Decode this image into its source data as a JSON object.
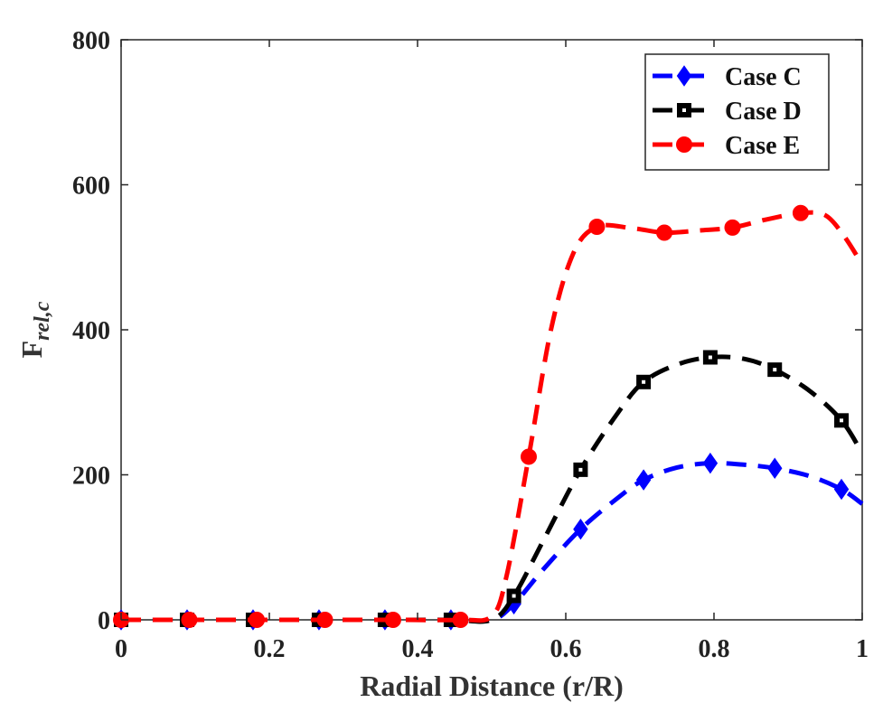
{
  "chart_data": {
    "type": "line",
    "title": "",
    "xlabel": "Radial Distance (r/R)",
    "ylabel_main": "F",
    "ylabel_sub": "rel,c",
    "xlim": [
      0,
      1
    ],
    "ylim": [
      0,
      800
    ],
    "xticks": [
      0,
      0.2,
      0.4,
      0.6,
      0.8,
      1
    ],
    "xtick_labels": [
      "0",
      "0.2",
      "0.4",
      "0.6",
      "0.8",
      "1"
    ],
    "yticks": [
      0,
      200,
      400,
      600,
      800
    ],
    "ytick_labels": [
      "0",
      "200",
      "400",
      "600",
      "800"
    ],
    "grid": false,
    "legend_position": "top-right",
    "series": [
      {
        "name": "Case C",
        "color": "#0000ff",
        "marker": "diamond",
        "x": [
          0,
          0.089,
          0.178,
          0.267,
          0.356,
          0.445,
          0.5,
          0.53,
          0.57,
          0.62,
          0.67,
          0.705,
          0.75,
          0.795,
          0.84,
          0.882,
          0.93,
          0.972,
          1.0
        ],
        "y": [
          0,
          0,
          0,
          0,
          0,
          0,
          0,
          22,
          70,
          125,
          168,
          193,
          210,
          216,
          214,
          209,
          198,
          180,
          160
        ],
        "marker_x": [
          0,
          0.089,
          0.178,
          0.267,
          0.356,
          0.445,
          0.53,
          0.62,
          0.705,
          0.795,
          0.882,
          0.972
        ],
        "marker_y": [
          0,
          0,
          0,
          0,
          0,
          0,
          22,
          125,
          193,
          216,
          209,
          180
        ]
      },
      {
        "name": "Case D",
        "color": "#000000",
        "marker": "square",
        "x": [
          0,
          0.089,
          0.178,
          0.267,
          0.356,
          0.445,
          0.5,
          0.53,
          0.57,
          0.62,
          0.67,
          0.705,
          0.75,
          0.795,
          0.84,
          0.882,
          0.93,
          0.972,
          1.0
        ],
        "y": [
          0,
          0,
          0,
          0,
          0,
          0,
          0,
          33,
          110,
          207,
          285,
          328,
          352,
          362,
          360,
          345,
          315,
          275,
          230
        ],
        "marker_x": [
          0,
          0.089,
          0.178,
          0.267,
          0.356,
          0.445,
          0.53,
          0.62,
          0.705,
          0.795,
          0.882,
          0.972
        ],
        "marker_y": [
          0,
          0,
          0,
          0,
          0,
          0,
          33,
          207,
          328,
          362,
          345,
          275
        ]
      },
      {
        "name": "Case E",
        "color": "#ff0000",
        "marker": "circle",
        "x": [
          0,
          0.092,
          0.183,
          0.275,
          0.367,
          0.458,
          0.5,
          0.52,
          0.55,
          0.58,
          0.61,
          0.642,
          0.69,
          0.733,
          0.78,
          0.825,
          0.87,
          0.917,
          0.95,
          0.975,
          1.0
        ],
        "y": [
          0,
          0,
          0,
          0,
          0,
          0,
          5,
          60,
          225,
          400,
          505,
          542,
          540,
          534,
          537,
          541,
          552,
          561,
          558,
          530,
          490
        ],
        "marker_x": [
          0,
          0.092,
          0.183,
          0.275,
          0.367,
          0.458,
          0.55,
          0.642,
          0.733,
          0.825,
          0.917
        ],
        "marker_y": [
          0,
          0,
          0,
          0,
          0,
          0,
          225,
          542,
          534,
          541,
          561
        ]
      }
    ]
  }
}
